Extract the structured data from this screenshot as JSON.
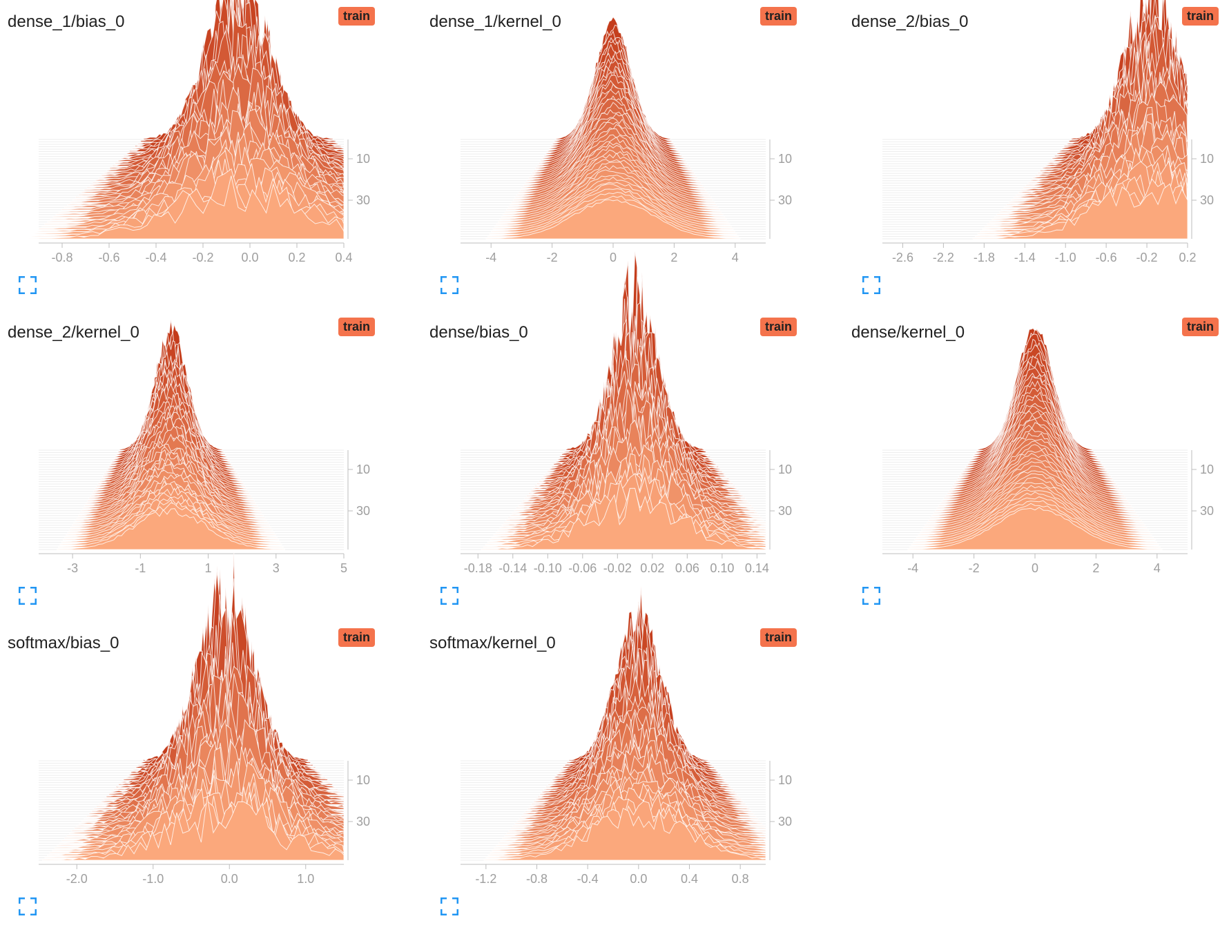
{
  "colors": {
    "accent": "#f4734c",
    "fill_light": "#fba87c",
    "fill_dark": "#c43c1b",
    "expand_icon": "#2196f3",
    "axis": "#9e9e9e"
  },
  "expand_icon_name": "fullscreen-icon",
  "y_axis": {
    "tick_labels": [
      "10",
      "30"
    ]
  },
  "cards": [
    {
      "title": "dense_1/bias_0",
      "run": "train",
      "chart_data": {
        "type": "histogram",
        "xlim": [
          -0.9,
          0.4
        ],
        "center": -0.05,
        "spread": 0.28,
        "peak": 1.0,
        "noise": 0.45,
        "xticks": [
          "-0.8",
          "-0.6",
          "-0.4",
          "-0.2",
          "0.0",
          "0.2",
          "0.4"
        ],
        "xtick_values": [
          -0.8,
          -0.6,
          -0.4,
          -0.2,
          0.0,
          0.2,
          0.4
        ]
      }
    },
    {
      "title": "dense_1/kernel_0",
      "run": "train",
      "chart_data": {
        "type": "histogram",
        "xlim": [
          -5,
          5
        ],
        "center": 0,
        "spread": 1.3,
        "peak": 0.85,
        "noise": 0.05,
        "xticks": [
          "-4",
          "-2",
          "0",
          "2",
          "4"
        ],
        "xtick_values": [
          -4,
          -2,
          0,
          2,
          4
        ]
      }
    },
    {
      "title": "dense_2/bias_0",
      "run": "train",
      "chart_data": {
        "type": "histogram",
        "xlim": [
          -2.8,
          0.2
        ],
        "center": -0.15,
        "spread": 0.55,
        "peak": 1.0,
        "noise": 0.4,
        "xticks": [
          "-2.6",
          "-2.2",
          "-1.8",
          "-1.4",
          "-1.0",
          "-0.6",
          "-0.2",
          "0.2"
        ],
        "xtick_values": [
          -2.6,
          -2.2,
          -1.8,
          -1.4,
          -1.0,
          -0.6,
          -0.2,
          0.2
        ]
      }
    },
    {
      "title": "dense_2/kernel_0",
      "run": "train",
      "chart_data": {
        "type": "histogram",
        "xlim": [
          -4,
          5
        ],
        "center": -0.1,
        "spread": 1.05,
        "peak": 0.85,
        "noise": 0.12,
        "xticks": [
          "-3",
          "-1",
          "1",
          "3",
          "5"
        ],
        "xtick_values": [
          -3,
          -1,
          1,
          3,
          5
        ]
      }
    },
    {
      "title": "dense/bias_0",
      "run": "train",
      "chart_data": {
        "type": "histogram",
        "xlim": [
          -0.2,
          0.15
        ],
        "center": 0.0,
        "spread": 0.055,
        "peak": 1.0,
        "noise": 0.45,
        "xticks": [
          "-0.18",
          "-0.14",
          "-0.10",
          "-0.06",
          "-0.02",
          "0.02",
          "0.06",
          "0.10",
          "0.14"
        ],
        "xtick_values": [
          -0.18,
          -0.14,
          -0.1,
          -0.06,
          -0.02,
          0.02,
          0.06,
          0.1,
          0.14
        ]
      }
    },
    {
      "title": "dense/kernel_0",
      "run": "train",
      "chart_data": {
        "type": "histogram",
        "xlim": [
          -5,
          5
        ],
        "center": 0,
        "spread": 1.3,
        "peak": 0.9,
        "noise": 0.04,
        "xticks": [
          "-4",
          "-2",
          "0",
          "2",
          "4"
        ],
        "xtick_values": [
          -4,
          -2,
          0,
          2,
          4
        ]
      }
    },
    {
      "title": "softmax/bias_0",
      "run": "train",
      "chart_data": {
        "type": "histogram",
        "xlim": [
          -2.5,
          1.5
        ],
        "center": -0.05,
        "spread": 0.75,
        "peak": 1.0,
        "noise": 0.6,
        "xticks": [
          "-2.0",
          "-1.0",
          "0.0",
          "1.0"
        ],
        "xtick_values": [
          -2.0,
          -1.0,
          0.0,
          1.0
        ]
      }
    },
    {
      "title": "softmax/kernel_0",
      "run": "train",
      "chart_data": {
        "type": "histogram",
        "xlim": [
          -1.4,
          1.0
        ],
        "center": 0.0,
        "spread": 0.38,
        "peak": 1.0,
        "noise": 0.3,
        "xticks": [
          "-1.2",
          "-0.8",
          "-0.4",
          "0.0",
          "0.4",
          "0.8"
        ],
        "xtick_values": [
          -1.2,
          -0.8,
          -0.4,
          0.0,
          0.4,
          0.8
        ]
      }
    }
  ]
}
